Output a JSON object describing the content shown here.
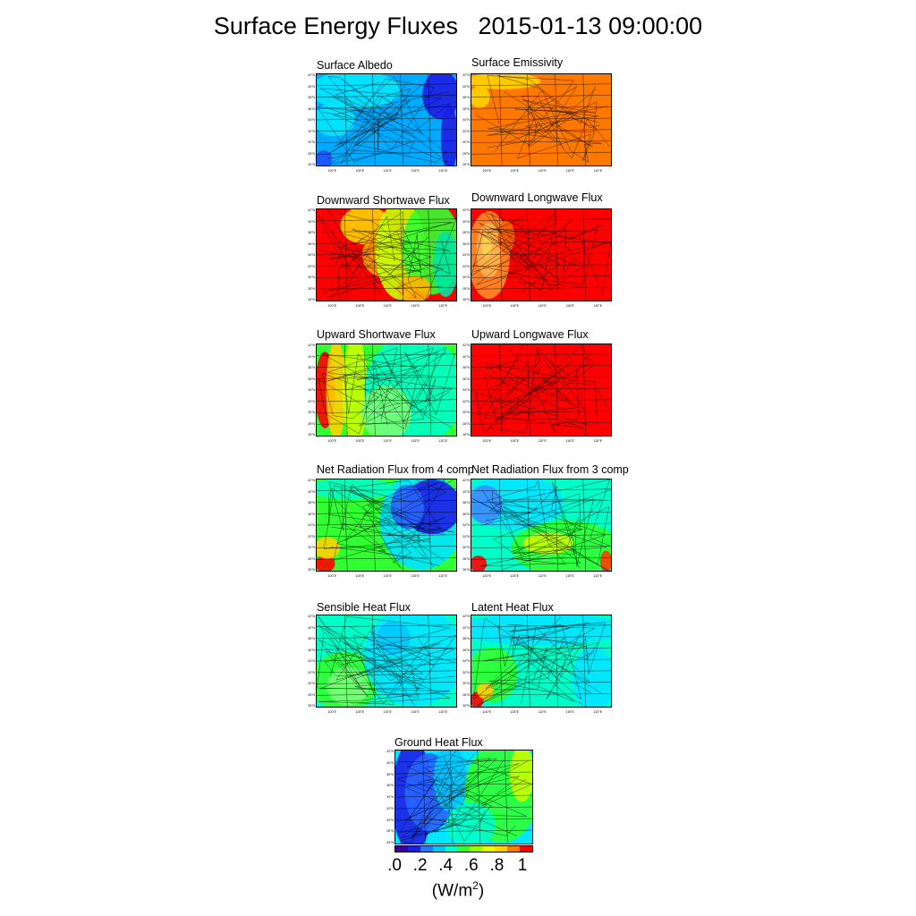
{
  "title": "Surface Energy Fluxes   2015-01-13 09:00:00",
  "panels": [
    {
      "name": "surface-albedo",
      "title": "Surface Albedo",
      "base": "#00aaff",
      "patches": [
        [
          "#00e6ff",
          0.0,
          0.0,
          0.55,
          0.35
        ],
        [
          "#1e1ee6",
          0.78,
          0.0,
          0.22,
          0.45
        ],
        [
          "#1e1ee6",
          0.9,
          0.4,
          0.1,
          0.6
        ],
        [
          "#00e6ff",
          0.0,
          0.35,
          0.25,
          0.3
        ],
        [
          "#2050ff",
          0.0,
          0.85,
          0.1,
          0.15
        ]
      ]
    },
    {
      "name": "surface-emissivity",
      "title": "Surface Emissivity",
      "base": "#ff7800",
      "patches": [
        [
          "#ffd200",
          0.0,
          0.0,
          0.45,
          0.15
        ],
        [
          "#ffd200",
          0.0,
          0.15,
          0.12,
          0.2
        ]
      ]
    },
    {
      "name": "downward-shortwave-flux",
      "title": "Downward Shortwave Flux",
      "base": "#ff0000",
      "patches": [
        [
          "#ffd200",
          0.2,
          0.0,
          0.3,
          0.35
        ],
        [
          "#ffa000",
          0.35,
          0.3,
          0.25,
          0.4
        ],
        [
          "#c8ff00",
          0.45,
          0.0,
          0.3,
          0.9
        ],
        [
          "#32ff32",
          0.65,
          0.0,
          0.35,
          0.85
        ],
        [
          "#00e6a0",
          0.85,
          0.3,
          0.15,
          0.6
        ],
        [
          "#ffb400",
          0.6,
          0.75,
          0.2,
          0.25
        ]
      ]
    },
    {
      "name": "downward-longwave-flux",
      "title": "Downward Longwave Flux",
      "base": "#ff0000",
      "patches": [
        [
          "#ff8c28",
          0.0,
          0.1,
          0.25,
          0.8
        ],
        [
          "#ffb450",
          0.05,
          0.2,
          0.15,
          0.5
        ],
        [
          "#ff6400",
          0.2,
          0.15,
          0.1,
          0.3
        ],
        [
          "#ffd250",
          0.08,
          0.3,
          0.06,
          0.2
        ]
      ]
    },
    {
      "name": "upward-shortwave-flux",
      "title": "Upward Shortwave Flux",
      "base": "#32ff32",
      "patches": [
        [
          "#ff0000",
          0.0,
          0.15,
          0.12,
          0.7
        ],
        [
          "#ffd200",
          0.08,
          0.05,
          0.12,
          0.9
        ],
        [
          "#c8ff00",
          0.2,
          0.0,
          0.15,
          1.0
        ],
        [
          "#00ffc8",
          0.4,
          0.0,
          0.6,
          1.0
        ],
        [
          "#78ff78",
          0.35,
          0.5,
          0.3,
          0.5
        ]
      ]
    },
    {
      "name": "upward-longwave-flux",
      "title": "Upward Longwave Flux",
      "base": "#ff0000",
      "patches": []
    },
    {
      "name": "net-radiation-4-comp",
      "title": "Net Radiation Flux from 4 comp",
      "base": "#32ff32",
      "patches": [
        [
          "#00e6ff",
          0.5,
          0.0,
          0.5,
          0.9
        ],
        [
          "#1e1ee6",
          0.65,
          0.05,
          0.35,
          0.5
        ],
        [
          "#2864ff",
          0.55,
          0.1,
          0.2,
          0.4
        ],
        [
          "#ff0000",
          0.0,
          0.85,
          0.12,
          0.15
        ],
        [
          "#ffd200",
          0.0,
          0.65,
          0.15,
          0.2
        ],
        [
          "#00ffc8",
          0.0,
          0.0,
          0.5,
          0.2
        ]
      ]
    },
    {
      "name": "net-radiation-3-comp",
      "title": "Net Radiation Flux from 3 comp",
      "base": "#00ffc8",
      "patches": [
        [
          "#00e6ff",
          0.0,
          0.0,
          0.6,
          0.5
        ],
        [
          "#3c8cff",
          0.0,
          0.1,
          0.2,
          0.35
        ],
        [
          "#32ff32",
          0.35,
          0.5,
          0.65,
          0.5
        ],
        [
          "#ff0000",
          0.0,
          0.85,
          0.1,
          0.15
        ],
        [
          "#c8ff00",
          0.4,
          0.6,
          0.3,
          0.2
        ],
        [
          "#ff3c00",
          0.93,
          0.8,
          0.07,
          0.2
        ]
      ]
    },
    {
      "name": "sensible-heat-flux",
      "title": "Sensible Heat Flux",
      "base": "#00ffc8",
      "patches": [
        [
          "#32ff32",
          0.0,
          0.45,
          0.4,
          0.55
        ],
        [
          "#00e6ff",
          0.4,
          0.0,
          0.6,
          0.9
        ],
        [
          "#78ff78",
          0.1,
          0.6,
          0.25,
          0.35
        ],
        [
          "#00c8ff",
          0.45,
          0.1,
          0.2,
          0.3
        ]
      ]
    },
    {
      "name": "latent-heat-flux",
      "title": "Latent Heat Flux",
      "base": "#00ffc8",
      "patches": [
        [
          "#00e6ff",
          0.0,
          0.0,
          1.0,
          0.3
        ],
        [
          "#32ff32",
          0.0,
          0.4,
          0.3,
          0.5
        ],
        [
          "#ff0000",
          0.0,
          0.85,
          0.08,
          0.15
        ],
        [
          "#ffd200",
          0.05,
          0.75,
          0.1,
          0.15
        ],
        [
          "#00e6ff",
          0.75,
          0.4,
          0.25,
          0.6
        ]
      ]
    },
    {
      "name": "ground-heat-flux",
      "title": "Ground Heat Flux",
      "base": "#00e6ff",
      "patches": [
        [
          "#1e1ee6",
          0.0,
          0.0,
          0.25,
          1.0
        ],
        [
          "#2864ff",
          0.1,
          0.1,
          0.3,
          0.7
        ],
        [
          "#00c8ff",
          0.3,
          0.0,
          0.2,
          0.6
        ],
        [
          "#32ff32",
          0.55,
          0.0,
          0.45,
          0.9
        ],
        [
          "#00ffc8",
          0.4,
          0.6,
          0.3,
          0.4
        ],
        [
          "#c8ff00",
          0.85,
          0.0,
          0.15,
          0.5
        ]
      ]
    }
  ],
  "lat_ticks": [
    "42°N",
    "40°N",
    "38°N",
    "36°N",
    "34°N",
    "32°N",
    "30°N",
    "28°N",
    "26°N"
  ],
  "lon_ticks": [
    "100°E",
    "105°E",
    "110°E",
    "115°E",
    "120°E"
  ],
  "colorbar": {
    "colors": [
      "#3c00a0",
      "#1e1ee6",
      "#2878ff",
      "#00c8ff",
      "#00ffc8",
      "#32ff32",
      "#96ff00",
      "#e6ff00",
      "#ffd200",
      "#ff7800",
      "#ff0000"
    ],
    "labels": [
      ".0",
      ".2",
      ".4",
      ".6",
      ".8",
      "1"
    ],
    "units_prefix": "(W/m",
    "units_sup": "2",
    "units_suffix": ")"
  },
  "chart_data": {
    "type": "heatmap",
    "title": "Surface Energy Fluxes   2015-01-13 09:00:00",
    "panels": [
      "Surface Albedo",
      "Surface Emissivity",
      "Downward Shortwave Flux",
      "Downward Longwave Flux",
      "Upward Shortwave Flux",
      "Upward Longwave Flux",
      "Net Radiation Flux from 4 comp",
      "Net Radiation Flux from 3 comp",
      "Sensible Heat Flux",
      "Latent Heat Flux",
      "Ground Heat Flux"
    ],
    "colorbar_range": [
      0,
      1
    ],
    "colorbar_ticks": [
      0,
      0.2,
      0.4,
      0.6,
      0.8,
      1
    ],
    "units": "(W/m2)",
    "lat_ticks": [
      "26°N",
      "28°N",
      "30°N",
      "32°N",
      "34°N",
      "36°N",
      "38°N",
      "40°N",
      "42°N"
    ],
    "lon_ticks": [
      "100°E",
      "105°E",
      "110°E",
      "115°E",
      "120°E"
    ]
  }
}
